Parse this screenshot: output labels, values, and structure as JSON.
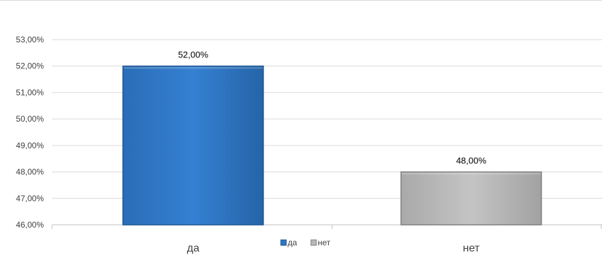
{
  "chart_data": {
    "type": "bar",
    "title": "",
    "xlabel": "",
    "ylabel": "",
    "categories": [
      "да",
      "нет"
    ],
    "values": [
      52.0,
      48.0
    ],
    "data_labels": [
      "52,00%",
      "48,00%"
    ],
    "colors": [
      "#2e75c4",
      "#b8b8b8"
    ],
    "edge_colors": [
      "#1f5591",
      "#7f7f7f"
    ],
    "ylim": [
      46,
      53
    ],
    "y_ticks": [
      {
        "value": 53,
        "label": "53,00%"
      },
      {
        "value": 52,
        "label": "52,00%"
      },
      {
        "value": 51,
        "label": "51,00%"
      },
      {
        "value": 50,
        "label": "50,00%"
      },
      {
        "value": 49,
        "label": "49,00%"
      },
      {
        "value": 48,
        "label": "48,00%"
      },
      {
        "value": 47,
        "label": "47,00%"
      },
      {
        "value": 46,
        "label": "46,00%"
      }
    ],
    "grid": true,
    "legend": {
      "placement": "bottom-center",
      "entries": [
        "да",
        "нет"
      ]
    }
  }
}
